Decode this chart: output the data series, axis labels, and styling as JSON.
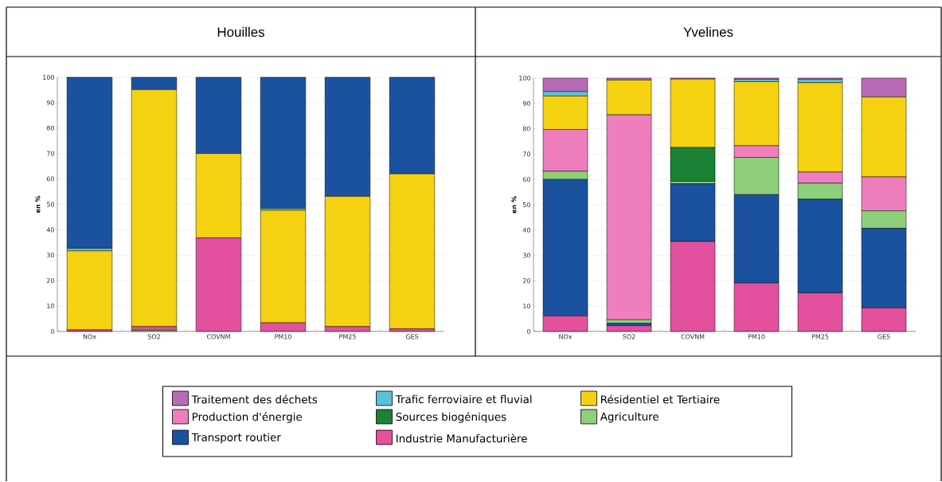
{
  "chart_data": [
    {
      "type": "bar",
      "stacked": true,
      "title": "Houilles",
      "ylabel": "en %",
      "categories": [
        "NOx",
        "SO2",
        "COVNM",
        "PM10",
        "PM25",
        "GES"
      ],
      "ylim": [
        0,
        100
      ],
      "yticks": [
        0,
        10,
        20,
        30,
        40,
        50,
        60,
        70,
        80,
        90,
        100
      ],
      "grid": "y",
      "legend": false,
      "series": [
        {
          "color": "#8ecf7a",
          "values": [
            0,
            0.5,
            0,
            0,
            0,
            0
          ]
        },
        {
          "color": "#e2509e",
          "values": [
            0.6,
            1.4,
            36.8,
            3.4,
            1.9,
            1.0
          ]
        },
        {
          "color": "#f4d211",
          "values": [
            31.1,
            93.2,
            33.2,
            44.3,
            51.2,
            61.0
          ]
        },
        {
          "color": "#5bc0d8",
          "values": [
            1.0,
            0,
            0,
            0.7,
            0,
            0
          ]
        },
        {
          "color": "#1a52a0",
          "values": [
            67.3,
            4.9,
            30.0,
            51.6,
            46.9,
            38.0
          ]
        }
      ]
    },
    {
      "type": "bar",
      "stacked": true,
      "title": "Yvelines",
      "ylabel": "en %",
      "categories": [
        "NOx",
        "SO2",
        "COVNM",
        "PM10",
        "PM25",
        "GES"
      ],
      "ylim": [
        0,
        100
      ],
      "yticks": [
        0,
        10,
        20,
        30,
        40,
        50,
        60,
        70,
        80,
        90,
        100
      ],
      "grid": "y",
      "legend": "bottom",
      "series": [
        {
          "name": "Industrie Manufacturière",
          "color": "#e2509e",
          "values": [
            6.1,
            2.3,
            35.5,
            19.1,
            15.2,
            9.3
          ]
        },
        {
          "name": "Transport routier",
          "color": "#1a52a0",
          "values": [
            53.9,
            0.9,
            22.8,
            34.9,
            37.0,
            31.4
          ]
        },
        {
          "name": "Agriculture",
          "color": "#8ecf7a",
          "values": [
            3.2,
            1.4,
            0.9,
            14.7,
            6.3,
            6.9
          ]
        },
        {
          "name": "Sources biogéniques",
          "color": "#1b8235",
          "values": [
            0,
            0,
            13.4,
            0,
            0,
            0
          ]
        },
        {
          "name": "Production d'énergie",
          "color": "#ee7ebd",
          "values": [
            16.5,
            80.9,
            0,
            4.6,
            4.4,
            13.4
          ]
        },
        {
          "name": "Résidentiel et Tertiaire",
          "color": "#f4d211",
          "values": [
            13.2,
            13.7,
            27.0,
            25.3,
            35.3,
            31.5
          ]
        },
        {
          "name": "Trafic ferroviaire et fluvial",
          "color": "#5bc0d8",
          "values": [
            1.8,
            0,
            0,
            0.9,
            1.3,
            0
          ]
        },
        {
          "name": "Traitement des déchets",
          "color": "#b86bb5",
          "values": [
            5.3,
            0.8,
            0.4,
            0.5,
            0.5,
            7.5
          ]
        }
      ]
    }
  ]
}
